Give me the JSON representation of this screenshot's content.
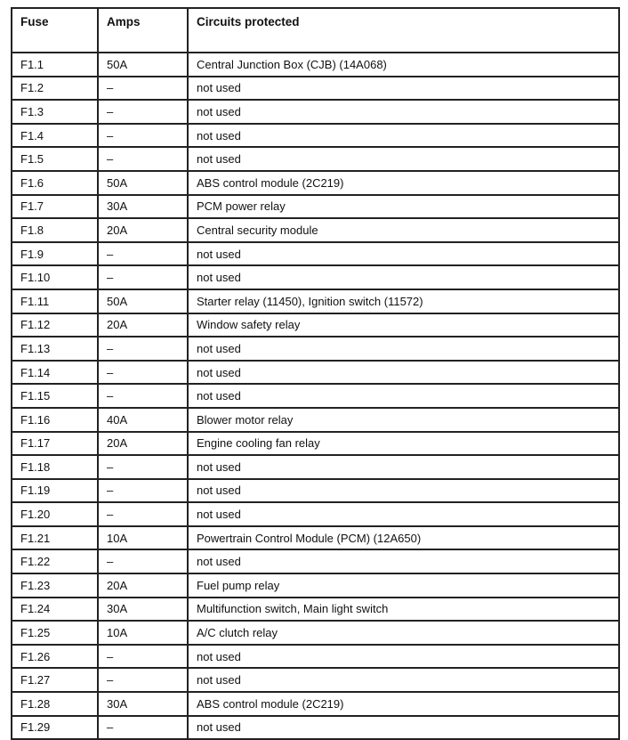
{
  "headers": [
    "Fuse",
    "Amps",
    "Circuits protected"
  ],
  "rows": [
    [
      "F1.1",
      "50A",
      "Central Junction Box (CJB) (14A068)"
    ],
    [
      "F1.2",
      "–",
      "not used"
    ],
    [
      "F1.3",
      "–",
      "not used"
    ],
    [
      "F1.4",
      "–",
      "not used"
    ],
    [
      "F1.5",
      "–",
      "not used"
    ],
    [
      "F1.6",
      "50A",
      "ABS control module (2C219)"
    ],
    [
      "F1.7",
      "30A",
      "PCM power relay"
    ],
    [
      "F1.8",
      "20A",
      "Central security module"
    ],
    [
      "F1.9",
      "–",
      "not used"
    ],
    [
      "F1.10",
      "–",
      "not used"
    ],
    [
      "F1.11",
      "50A",
      "Starter relay (11450), Ignition switch (11572)"
    ],
    [
      "F1.12",
      "20A",
      "Window safety relay"
    ],
    [
      "F1.13",
      "–",
      "not used"
    ],
    [
      "F1.14",
      "–",
      "not used"
    ],
    [
      "F1.15",
      "–",
      "not used"
    ],
    [
      "F1.16",
      "40A",
      "Blower motor relay"
    ],
    [
      "F1.17",
      "20A",
      "Engine cooling fan relay"
    ],
    [
      "F1.18",
      "–",
      "not used"
    ],
    [
      "F1.19",
      "–",
      "not used"
    ],
    [
      "F1.20",
      "–",
      "not used"
    ],
    [
      "F1.21",
      "10A",
      "Powertrain Control Module (PCM) (12A650)"
    ],
    [
      "F1.22",
      "–",
      "not used"
    ],
    [
      "F1.23",
      "20A",
      "Fuel pump relay"
    ],
    [
      "F1.24",
      "30A",
      "Multifunction switch, Main light switch"
    ],
    [
      "F1.25",
      "10A",
      "A/C clutch relay"
    ],
    [
      "F1.26",
      "–",
      "not used"
    ],
    [
      "F1.27",
      "–",
      "not used"
    ],
    [
      "F1.28",
      "30A",
      "ABS control module (2C219)"
    ],
    [
      "F1.29",
      "–",
      "not used"
    ]
  ]
}
